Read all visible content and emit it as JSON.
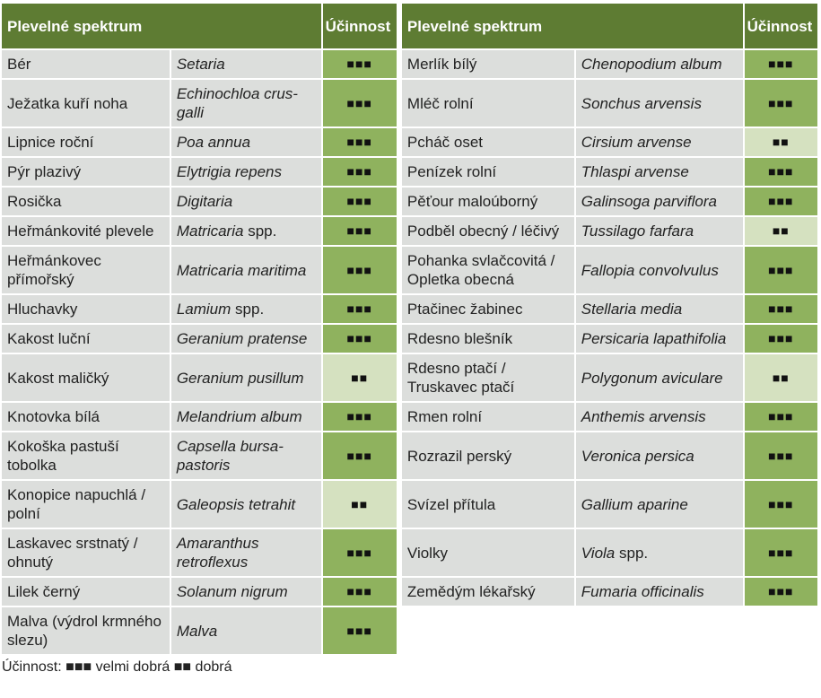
{
  "tables": [
    {
      "header": {
        "species": "Plevelné spektrum",
        "efficacy": "Účinnost"
      },
      "rows": [
        {
          "czech": "Bér",
          "latin": "Setaria",
          "rating": "■■■"
        },
        {
          "czech": "Ježatka kuří noha",
          "latin": "Echinochloa crus-galli",
          "rating": "■■■"
        },
        {
          "czech": "Lipnice roční",
          "latin": "Poa annua",
          "rating": "■■■"
        },
        {
          "czech": "Pýr plazivý",
          "latin": "Elytrigia repens",
          "rating": "■■■"
        },
        {
          "czech": "Rosička",
          "latin": "Digitaria",
          "rating": "■■■"
        },
        {
          "czech": "Heřmánkovité plevele",
          "latin": "Matricaria",
          "note": "spp.",
          "rating": "■■■"
        },
        {
          "czech": "Heřmánkovec přímořský",
          "latin": "Matricaria maritima",
          "rating": "■■■"
        },
        {
          "czech": "Hluchavky",
          "latin": "Lamium",
          "note": "spp.",
          "rating": "■■■"
        },
        {
          "czech": "Kakost luční",
          "latin": "Geranium pratense",
          "rating": "■■■"
        },
        {
          "czech": "Kakost maličký",
          "latin": "Geranium pusillum",
          "rating": "■■"
        },
        {
          "czech": "Knotovka bílá",
          "latin": "Melandrium album",
          "rating": "■■■"
        },
        {
          "czech": "Kokoška pastuší tobolka",
          "latin": "Capsella bursa-pastoris",
          "rating": "■■■"
        },
        {
          "czech": "Konopice napuchlá / polní",
          "latin": "Galeopsis tetrahit",
          "rating": "■■"
        },
        {
          "czech": "Laskavec srstnatý / ohnutý",
          "latin": "Amaranthus retroflexus",
          "rating": "■■■"
        },
        {
          "czech": "Lilek černý",
          "latin": "Solanum nigrum",
          "rating": "■■■"
        },
        {
          "czech": "Malva (výdrol krmného slezu)",
          "latin": "Malva",
          "rating": "■■■"
        }
      ]
    },
    {
      "header": {
        "species": "Plevelné spektrum",
        "efficacy": "Účinnost"
      },
      "rows": [
        {
          "czech": "Merlík bílý",
          "latin": "Chenopodium album",
          "rating": "■■■"
        },
        {
          "czech": "Mléč rolní",
          "latin": "Sonchus arvensis",
          "rating": "■■■"
        },
        {
          "czech": "Pcháč oset",
          "latin": "Cirsium arvense",
          "rating": "■■"
        },
        {
          "czech": "Penízek rolní",
          "latin": "Thlaspi arvense",
          "rating": "■■■"
        },
        {
          "czech": "Pěťour maloúborný",
          "latin": "Galinsoga parviflora",
          "rating": "■■■"
        },
        {
          "czech": "Podběl obecný / léčivý",
          "latin": "Tussilago farfara",
          "rating": "■■"
        },
        {
          "czech": "Pohanka svlačcovitá / Opletka obecná",
          "latin": "Fallopia convolvulus",
          "rating": "■■■"
        },
        {
          "czech": "Ptačinec žabinec",
          "latin": "Stellaria media",
          "rating": "■■■"
        },
        {
          "czech": "Rdesno blešník",
          "latin": "Persicaria lapathifolia",
          "rating": "■■■"
        },
        {
          "czech": "Rdesno ptačí / Truskavec ptačí",
          "latin": "Polygonum aviculare",
          "rating": "■■"
        },
        {
          "czech": "Rmen rolní",
          "latin": "Anthemis arvensis",
          "rating": "■■■"
        },
        {
          "czech": "Rozrazil perský",
          "latin": "Veronica persica",
          "rating": "■■■"
        },
        {
          "czech": "Svízel přítula",
          "latin": "Gallium aparine",
          "rating": "■■■"
        },
        {
          "czech": "Violky",
          "latin": "Viola",
          "note": "spp.",
          "rating": "■■■"
        },
        {
          "czech": "Zemědým lékařský",
          "latin": "Fumaria officinalis",
          "rating": "■■■"
        }
      ]
    }
  ],
  "legend": {
    "label": "Účinnost:",
    "items": [
      {
        "symbol": "■■■",
        "text": "velmi dobrá"
      },
      {
        "symbol": "■■",
        "text": "dobrá"
      }
    ]
  }
}
